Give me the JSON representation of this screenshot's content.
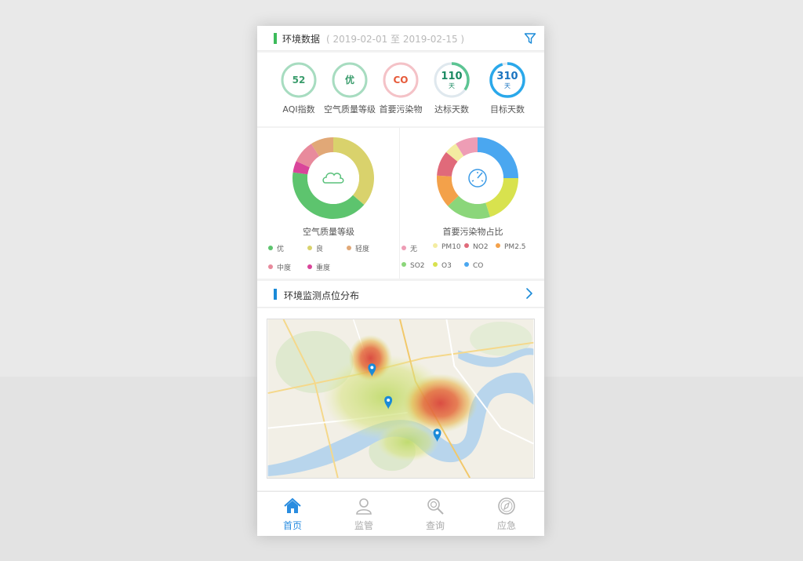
{
  "header": {
    "title": "环境数据",
    "date_range": "( 2019-02-01 至 2019-02-15 )",
    "filter_icon": "filter-icon"
  },
  "stats": [
    {
      "value": "52",
      "sub": "",
      "label": "AQI指数",
      "color": "#3a9c6c",
      "ring": "#a7dcc0"
    },
    {
      "value": "优",
      "sub": "",
      "label": "空气质量等级",
      "color": "#3a9c6c",
      "ring": "#a7dcc0"
    },
    {
      "value": "CO",
      "sub": "",
      "label": "首要污染物",
      "color": "#e65a3a",
      "ring": "#f4c2c7"
    },
    {
      "value": "110",
      "sub": "天",
      "label": "达标天数",
      "color": "#1b8a62",
      "ring": "#5cc493",
      "progress": 0.35
    },
    {
      "value": "310",
      "sub": "天",
      "label": "目标天数",
      "color": "#1a74c0",
      "ring": "#2aa8ea",
      "progress": 0.95
    }
  ],
  "air_quality": {
    "caption": "空气质量等级",
    "center_icon": "cloud-icon",
    "legend": [
      {
        "label": "优",
        "color": "#5dc46e"
      },
      {
        "label": "良",
        "color": "#d9d26c"
      },
      {
        "label": "轻度",
        "color": "#e1a877"
      },
      {
        "label": "中度",
        "color": "#e88a9c"
      },
      {
        "label": "重度",
        "color": "#d9449a"
      }
    ],
    "segments": [
      {
        "color": "#d9d26c",
        "value": 0.4
      },
      {
        "color": "#5dc46e",
        "value": 0.45
      },
      {
        "color": "#d9449a",
        "value": 0.05
      },
      {
        "color": "#e88a9c",
        "value": 0.1
      },
      {
        "color": "#e1a877",
        "value": 0.1
      }
    ]
  },
  "pollutant": {
    "caption": "首要污染物占比",
    "center_icon": "gauge-icon",
    "legend": [
      {
        "label": "无",
        "color": "#ee9db5"
      },
      {
        "label": "PM10",
        "color": "#f3eca1"
      },
      {
        "label": "NO2",
        "color": "#e06a7a"
      },
      {
        "label": "PM2.5",
        "color": "#f3a14a"
      },
      {
        "label": "SO2",
        "color": "#8bd67a"
      },
      {
        "label": "O3",
        "color": "#d8e24e"
      },
      {
        "label": "CO",
        "color": "#4aa7f0"
      }
    ],
    "segments": [
      {
        "color": "#4aa7f0",
        "value": 0.25
      },
      {
        "color": "#d8e24e",
        "value": 0.2
      },
      {
        "color": "#8bd67a",
        "value": 0.18
      },
      {
        "color": "#f3a14a",
        "value": 0.13
      },
      {
        "color": "#e06a7a",
        "value": 0.1
      },
      {
        "color": "#f3eca1",
        "value": 0.05
      },
      {
        "color": "#ee9db5",
        "value": 0.09
      }
    ]
  },
  "monitoring": {
    "title": "环境监测点位分布",
    "arrow_icon": "chevron-right-icon",
    "markers": 3
  },
  "tabs": [
    {
      "label": "首页",
      "icon": "home-icon",
      "active": true
    },
    {
      "label": "监管",
      "icon": "user-icon",
      "active": false
    },
    {
      "label": "查询",
      "icon": "search-icon",
      "active": false
    },
    {
      "label": "应急",
      "icon": "compass-icon",
      "active": false
    }
  ],
  "colors": {
    "accent": "#2a8de0",
    "green_bar": "#3dbb5b",
    "blue_bar": "#1a8ad8"
  }
}
